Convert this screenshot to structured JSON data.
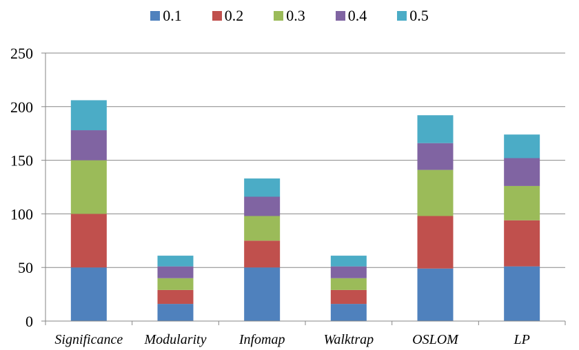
{
  "chart_data": {
    "type": "bar",
    "stacked": true,
    "categories": [
      "Significance",
      "Modularity",
      "Infomap",
      "Walktrap",
      "OSLOM",
      "LP"
    ],
    "series": [
      {
        "name": "0.1",
        "color": "#4F81BD",
        "values": [
          50,
          16,
          50,
          16,
          49,
          51
        ]
      },
      {
        "name": "0.2",
        "color": "#C0504D",
        "values": [
          50,
          13,
          25,
          13,
          49,
          43
        ]
      },
      {
        "name": "0.3",
        "color": "#9BBB59",
        "values": [
          50,
          11,
          23,
          11,
          43,
          32
        ]
      },
      {
        "name": "0.4",
        "color": "#8064A2",
        "values": [
          28,
          11,
          18,
          11,
          25,
          26
        ]
      },
      {
        "name": "0.5",
        "color": "#4BACC6",
        "values": [
          28,
          10,
          17,
          10,
          26,
          22
        ]
      }
    ],
    "yticks": [
      0,
      50,
      100,
      150,
      200,
      250
    ],
    "ylim": [
      0,
      250
    ],
    "grid": true,
    "legend_position": "top",
    "title": "",
    "xlabel": "",
    "ylabel": ""
  }
}
